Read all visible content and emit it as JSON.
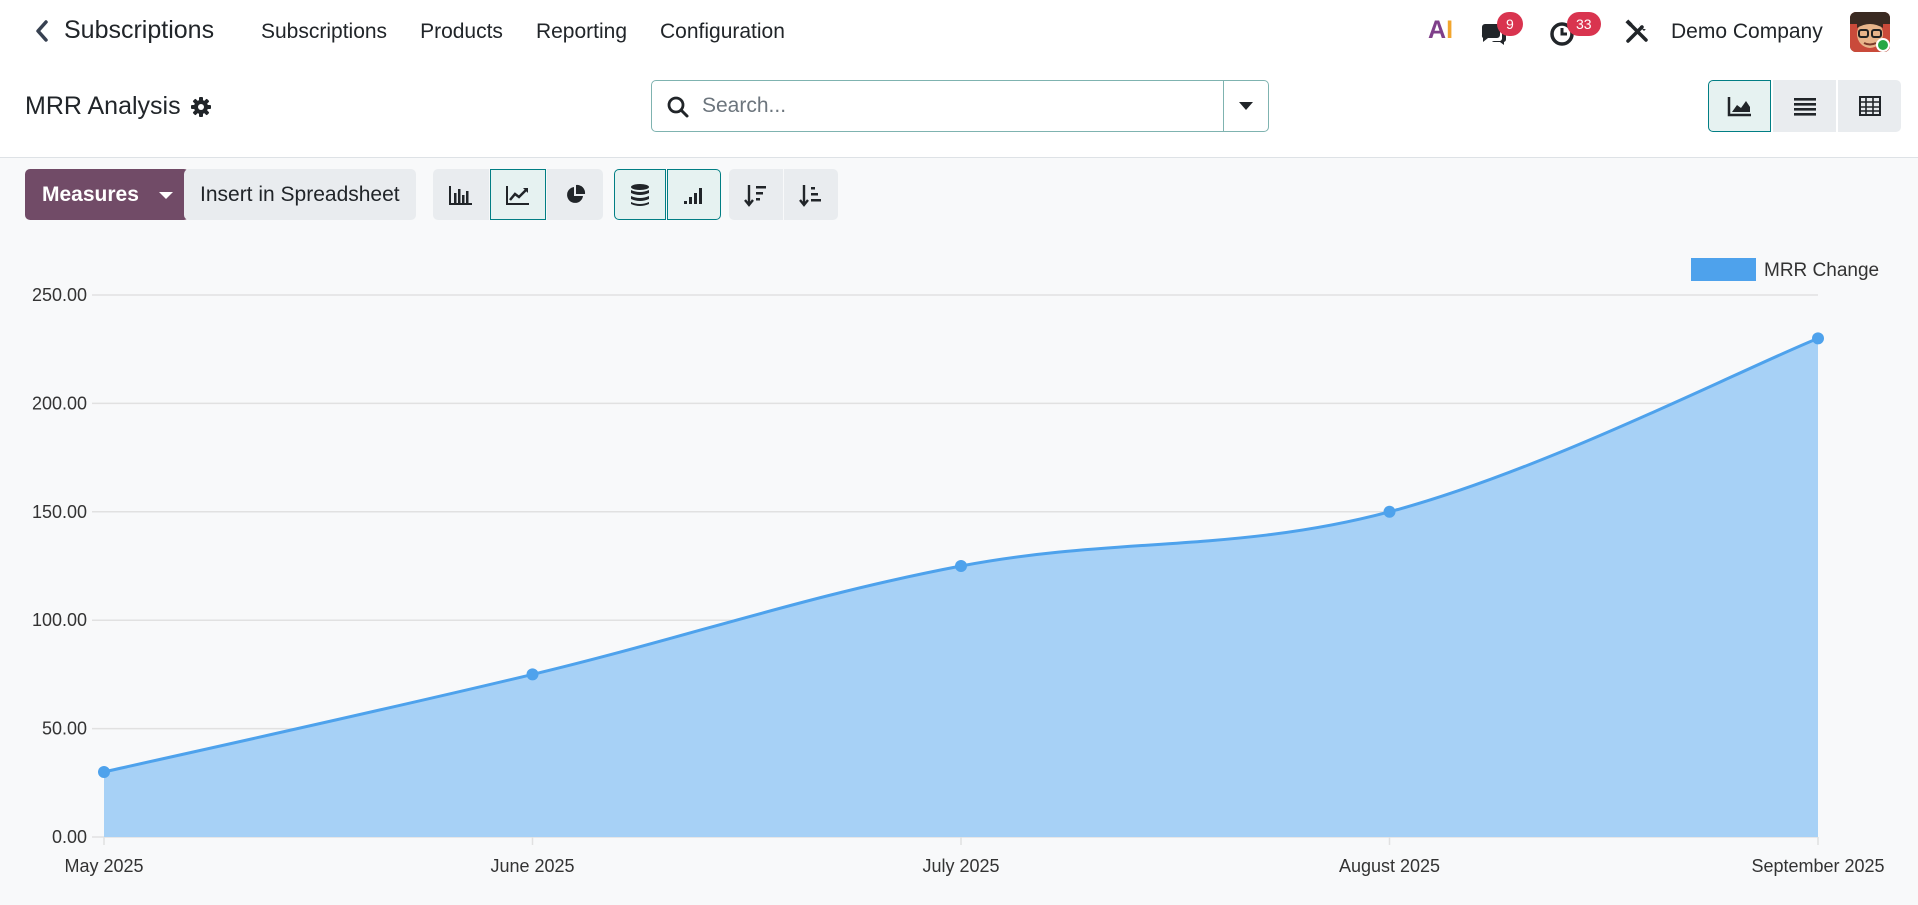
{
  "navbar": {
    "back_icon": "chevron-left-icon",
    "app_title": "Subscriptions",
    "menu": [
      "Subscriptions",
      "Products",
      "Reporting",
      "Configuration"
    ],
    "ai_label_a": "A",
    "ai_label_i": "I",
    "messages_badge": "9",
    "activities_badge": "33",
    "company": "Demo Company"
  },
  "control": {
    "title": "MRR Analysis",
    "search_placeholder": "Search...",
    "views": [
      "graph",
      "list",
      "pivot"
    ],
    "active_view": "graph"
  },
  "toolbar": {
    "measures_label": "Measures",
    "insert_label": "Insert in Spreadsheet",
    "chart_types": [
      "bar",
      "line",
      "pie"
    ],
    "active_chart_type": "line"
  },
  "colors": {
    "brand": "#714b67",
    "accent": "#017e84",
    "series": "#4ea2ec",
    "area": "#a7d1f6"
  },
  "chart_data": {
    "type": "area",
    "categories": [
      "May 2025",
      "June 2025",
      "July 2025",
      "August 2025",
      "September 2025"
    ],
    "series": [
      {
        "name": "MRR Change",
        "values": [
          30,
          75,
          125,
          150,
          230
        ]
      }
    ],
    "yticks": [
      "0.00",
      "50.00",
      "100.00",
      "150.00",
      "200.00",
      "250.00"
    ],
    "ylim": [
      0,
      250
    ],
    "grid": true,
    "legend": "top-right"
  }
}
